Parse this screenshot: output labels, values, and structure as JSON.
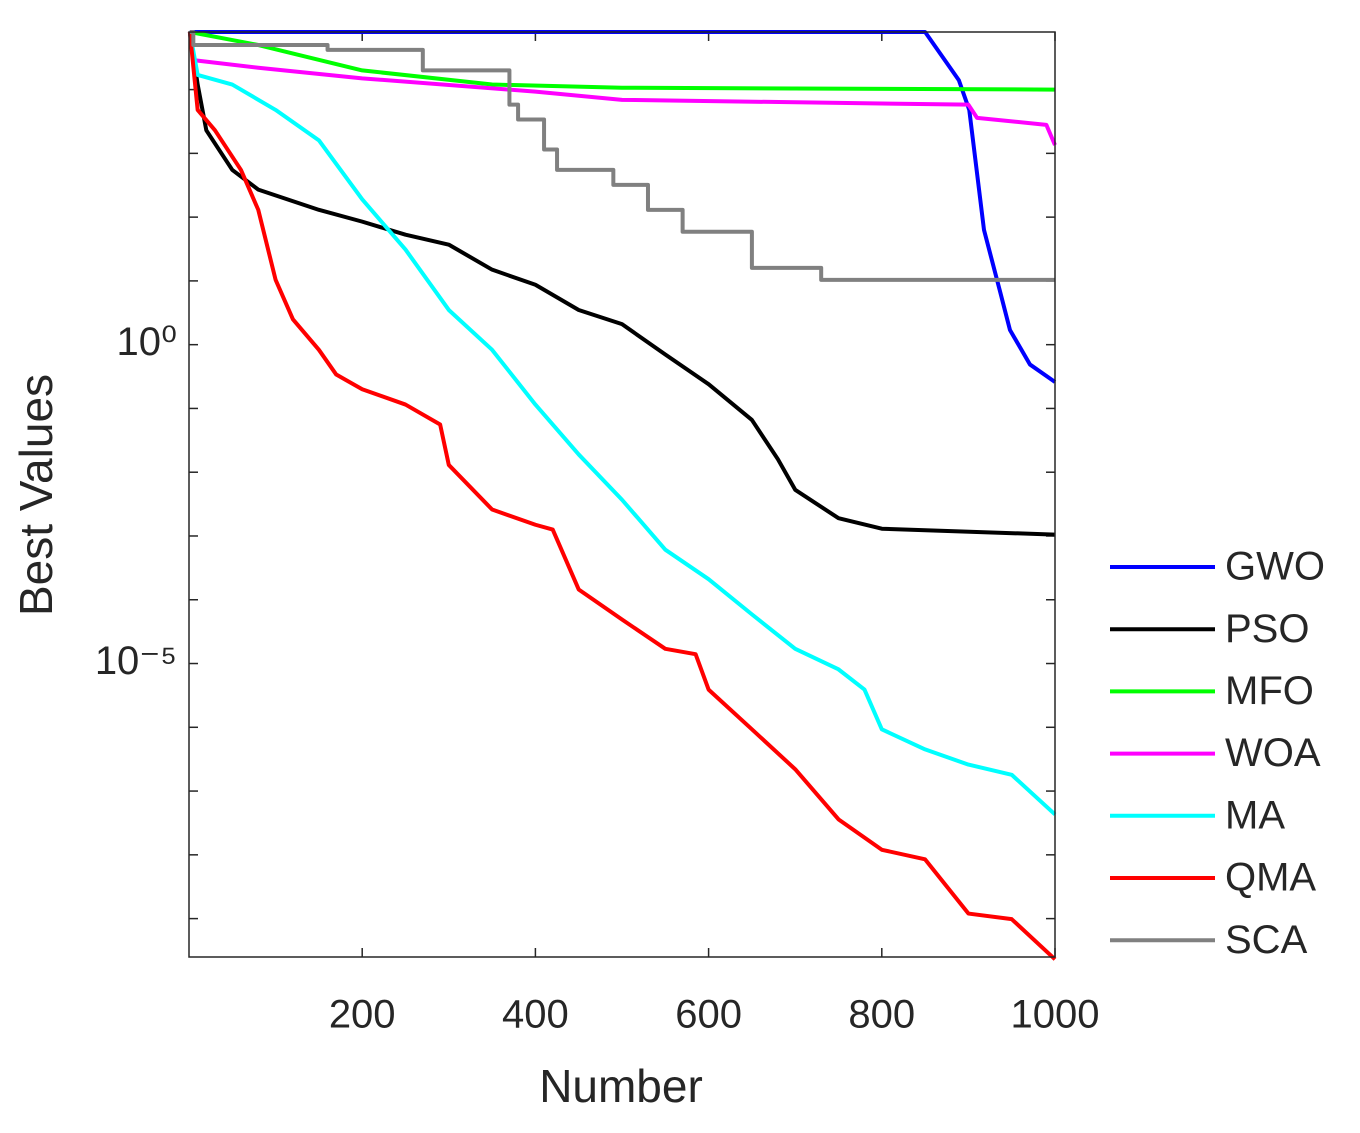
{
  "chart_data": {
    "type": "line",
    "xlabel": "Number",
    "ylabel": "Best Values",
    "xlim": [
      0,
      1000
    ],
    "xticks": [
      200,
      400,
      600,
      800,
      1000
    ],
    "ylim": [
      2.5e-10,
      80000
    ],
    "ylog": true,
    "yticks": [
      {
        "value": 1e-05,
        "label": "10⁻⁵"
      },
      {
        "value": 1,
        "label": "10⁰"
      }
    ],
    "y_minor_ticks": [
      10000,
      1000,
      100,
      10,
      0.1,
      0.01,
      0.001,
      0.0001,
      1e-06,
      1e-07,
      1e-08,
      1e-09
    ],
    "grid": false,
    "legend": "right",
    "series": [
      {
        "name": "GWO",
        "color": "#0000ff",
        "x": [
          1,
          850,
          889,
          901,
          918,
          936,
          948,
          971,
          1000
        ],
        "values": [
          80000,
          80000,
          14000,
          4800,
          63,
          7.3,
          1.7,
          0.49,
          0.26
        ]
      },
      {
        "name": "PSO",
        "color": "#000000",
        "x": [
          1,
          10,
          20,
          50,
          80,
          150,
          200,
          250,
          300,
          350,
          400,
          450,
          500,
          550,
          600,
          650,
          680,
          700,
          750,
          800,
          1000
        ],
        "values": [
          80000,
          12000,
          2300,
          550,
          270,
          130,
          85,
          53,
          37,
          15,
          8.7,
          3.5,
          2.1,
          0.7,
          0.24,
          0.066,
          0.016,
          0.0053,
          0.0019,
          0.0013,
          0.00105
        ]
      },
      {
        "name": "MFO",
        "color": "#00ff00",
        "x": [
          1,
          80,
          200,
          350,
          500,
          1000
        ],
        "values": [
          80000,
          50000,
          20000,
          12000,
          10700,
          10000
        ]
      },
      {
        "name": "WOA",
        "color": "#ff00ff",
        "x": [
          1,
          5,
          80,
          200,
          400,
          500,
          900,
          910,
          990,
          1000
        ],
        "values": [
          80000,
          29000,
          22000,
          15000,
          9300,
          6900,
          5800,
          3600,
          2800,
          1350
        ]
      },
      {
        "name": "MA",
        "color": "#00ffff",
        "x": [
          1,
          10,
          50,
          100,
          150,
          200,
          250,
          300,
          350,
          400,
          450,
          500,
          550,
          600,
          650,
          700,
          750,
          780,
          800,
          850,
          900,
          950,
          1000
        ],
        "values": [
          80000,
          17000,
          12000,
          4800,
          1600,
          190,
          31,
          3.5,
          0.83,
          0.115,
          0.019,
          0.0037,
          0.00061,
          0.00021,
          5.9e-05,
          1.7e-05,
          8.1e-06,
          3.9e-06,
          9.3e-07,
          4.5e-07,
          2.6e-07,
          1.8e-07,
          4.3e-08
        ]
      },
      {
        "name": "QMA",
        "color": "#ff0000",
        "x": [
          1,
          10,
          30,
          60,
          80,
          100,
          120,
          150,
          170,
          200,
          250,
          290,
          300,
          350,
          400,
          420,
          450,
          500,
          550,
          585,
          600,
          650,
          700,
          750,
          800,
          850,
          900,
          950,
          1000
        ],
        "values": [
          80000,
          4800,
          2300,
          550,
          130,
          10.4,
          2.5,
          0.83,
          0.34,
          0.2,
          0.115,
          0.056,
          0.013,
          0.0026,
          0.0015,
          0.00126,
          0.000145,
          4.9e-05,
          1.7e-05,
          1.4e-05,
          3.9e-06,
          9.3e-07,
          2.2e-07,
          3.6e-08,
          1.2e-08,
          8.5e-09,
          1.2e-09,
          9.8e-10,
          2.3e-10
        ]
      },
      {
        "name": "SCA",
        "color": "#808080",
        "step": true,
        "x": [
          1,
          5,
          160,
          270,
          370,
          380,
          410,
          425,
          490,
          530,
          570,
          650,
          730,
          1000
        ],
        "values": [
          80000,
          50000,
          42000,
          20000,
          5800,
          3400,
          1150,
          550,
          320,
          130,
          59,
          16,
          10.4,
          10.4
        ]
      }
    ]
  }
}
